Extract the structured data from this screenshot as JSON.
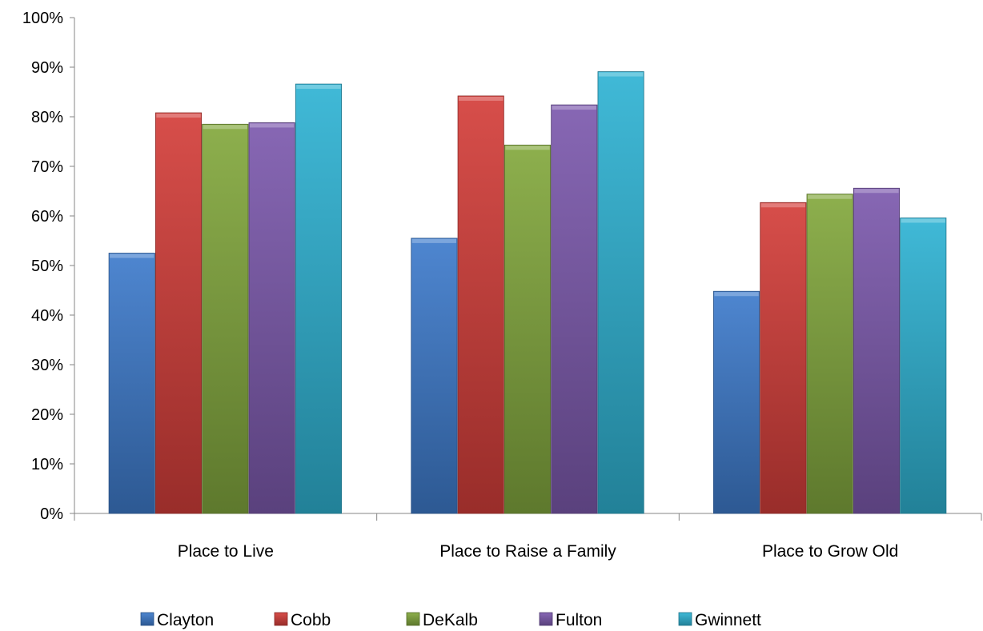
{
  "chart_data": {
    "type": "bar",
    "categories": [
      "Place to Live",
      "Place to Raise a Family",
      "Place to Grow Old"
    ],
    "series": [
      {
        "name": "Clayton",
        "color": "#3f7ccc",
        "values": [
          52.5,
          55.5,
          44.8
        ]
      },
      {
        "name": "Cobb",
        "color": "#d43f3a",
        "values": [
          80.8,
          84.2,
          62.7
        ]
      },
      {
        "name": "DeKalb",
        "color": "#83a83e",
        "values": [
          78.5,
          74.3,
          64.4
        ]
      },
      {
        "name": "Fulton",
        "color": "#7d5aae",
        "values": [
          78.8,
          82.4,
          65.6
        ]
      },
      {
        "name": "Gwinnett",
        "color": "#2fb3d3",
        "values": [
          86.6,
          89.1,
          59.6
        ]
      }
    ],
    "ylim": [
      0,
      100
    ],
    "yticks": [
      0,
      10,
      20,
      30,
      40,
      50,
      60,
      70,
      80,
      90,
      100
    ],
    "ytick_labels": [
      "0%",
      "10%",
      "20%",
      "30%",
      "40%",
      "50%",
      "60%",
      "70%",
      "80%",
      "90%",
      "100%"
    ],
    "grid": false,
    "legend_position": "bottom"
  }
}
